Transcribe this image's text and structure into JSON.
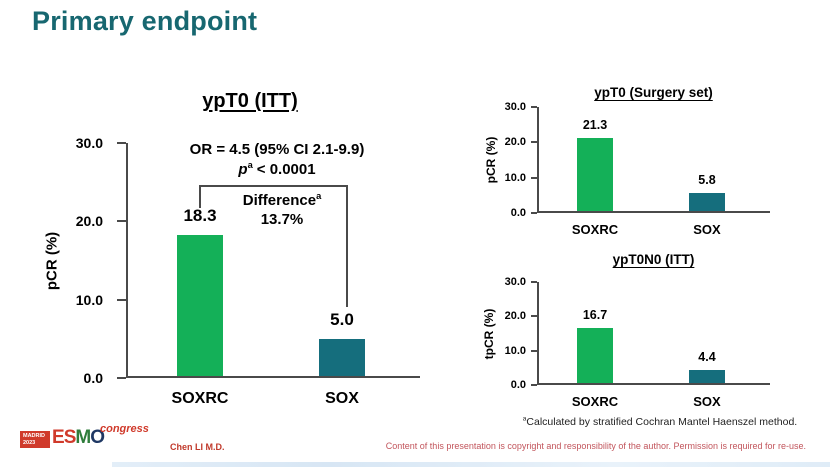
{
  "slide": {
    "title": "Primary endpoint",
    "footnote_sup": "a",
    "footnote_text": "Calculated by stratified Cochran Mantel Haenszel method.",
    "presenter": "Chen LI M.D.",
    "copyright": "Content of this presentation is copyright and responsibility of the author. Permission is required for re-use.",
    "logo": {
      "venue": "MADRID",
      "year": "2023",
      "letter_e": "E",
      "letter_s": "S",
      "letter_m": "M",
      "letter_o": "O",
      "congress": "congress"
    }
  },
  "colors": {
    "title_teal": "#176770",
    "bar_green": "#14b058",
    "bar_teal": "#156e7d",
    "axis_gray": "#4a4a4a",
    "accent_red": "#d03a2b",
    "copyright_red": "#c2555c"
  },
  "chart_data": [
    {
      "type": "bar",
      "title": "ypT0 (ITT)",
      "ylabel": "pCR (%)",
      "categories": [
        "SOXRC",
        "SOX"
      ],
      "values": [
        18.3,
        5.0
      ],
      "value_labels": [
        "18.3",
        "5.0"
      ],
      "bar_colors": [
        "#14b058",
        "#156e7d"
      ],
      "ylim": [
        0,
        30
      ],
      "yticks": [
        "0.0",
        "10.0",
        "20.0",
        "30.0"
      ],
      "grid": false,
      "legend": null,
      "annotations": {
        "or_line": "OR = 4.5 (95% CI 2.1-9.9)",
        "p_prefix": "p",
        "p_sup": "a",
        "p_rest": "< 0.0001",
        "difference_label": "Difference",
        "difference_sup": "a",
        "difference_value": "13.7%"
      }
    },
    {
      "type": "bar",
      "title": "ypT0 (Surgery set)",
      "ylabel": "pCR (%)",
      "categories": [
        "SOXRC",
        "SOX"
      ],
      "values": [
        21.3,
        5.8
      ],
      "value_labels": [
        "21.3",
        "5.8"
      ],
      "bar_colors": [
        "#14b058",
        "#156e7d"
      ],
      "ylim": [
        0,
        30
      ],
      "yticks": [
        "0.0",
        "10.0",
        "20.0",
        "30.0"
      ],
      "grid": false,
      "legend": null
    },
    {
      "type": "bar",
      "title": "ypT0N0 (ITT)",
      "ylabel": "tpCR (%)",
      "categories": [
        "SOXRC",
        "SOX"
      ],
      "values": [
        16.7,
        4.4
      ],
      "value_labels": [
        "16.7",
        "4.4"
      ],
      "bar_colors": [
        "#14b058",
        "#156e7d"
      ],
      "ylim": [
        0,
        30
      ],
      "yticks": [
        "0.0",
        "10.0",
        "20.0",
        "30.0"
      ],
      "grid": false,
      "legend": null
    }
  ]
}
